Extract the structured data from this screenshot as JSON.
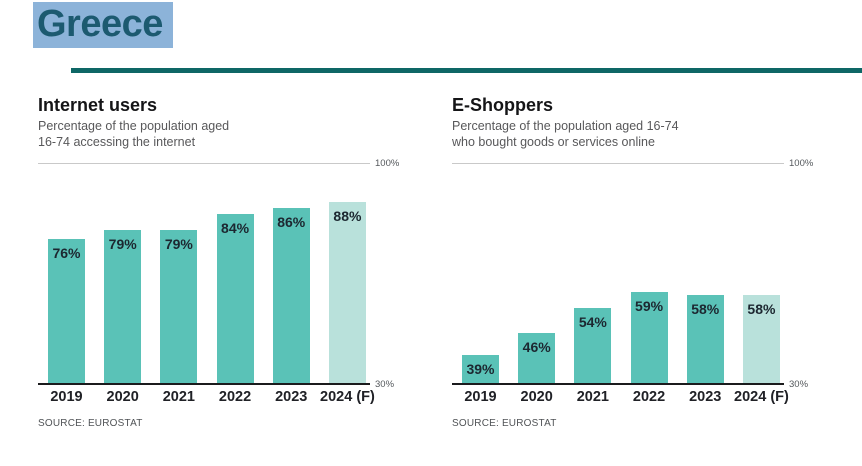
{
  "page": {
    "title": "Greece"
  },
  "colors": {
    "bar": "#5ac2b7",
    "bar_forecast": "#b9e1db",
    "header_rule": "#0e6766",
    "title_text": "#1c5a70",
    "title_highlight": "#8cb3d9"
  },
  "chart_data": [
    {
      "type": "bar",
      "title": "Internet users",
      "subtitle": "Percentage of the population aged 16-74 accessing the internet",
      "subtitle_line1": "Percentage of the population aged",
      "subtitle_line2": "16-74 accessing the internet",
      "categories": [
        "2019",
        "2020",
        "2021",
        "2022",
        "2023",
        "2024 (F)"
      ],
      "values": [
        76,
        79,
        79,
        84,
        86,
        88
      ],
      "labels": [
        "76%",
        "79%",
        "79%",
        "84%",
        "86%",
        "88%"
      ],
      "ylim": [
        30,
        100
      ],
      "y_axis": {
        "top_label": "100%",
        "bottom_label": "30%"
      },
      "forecast_index": 5,
      "legend": "lighter bar = forecast",
      "grid": "top and bottom rules only",
      "source": "SOURCE: EUROSTAT"
    },
    {
      "type": "bar",
      "title": "E-Shoppers",
      "subtitle": "Percentage of the population aged 16-74 who bought goods or services online",
      "subtitle_line1": "Percentage of the population aged 16-74",
      "subtitle_line2": "who bought goods or services online",
      "categories": [
        "2019",
        "2020",
        "2021",
        "2022",
        "2023",
        "2024 (F)"
      ],
      "values": [
        39,
        46,
        54,
        59,
        58,
        58
      ],
      "labels": [
        "39%",
        "46%",
        "54%",
        "59%",
        "58%",
        "58%"
      ],
      "ylim": [
        30,
        100
      ],
      "y_axis": {
        "top_label": "100%",
        "bottom_label": "30%"
      },
      "forecast_index": 5,
      "legend": "lighter bar = forecast",
      "grid": "top and bottom rules only",
      "source": "SOURCE: EUROSTAT"
    }
  ]
}
